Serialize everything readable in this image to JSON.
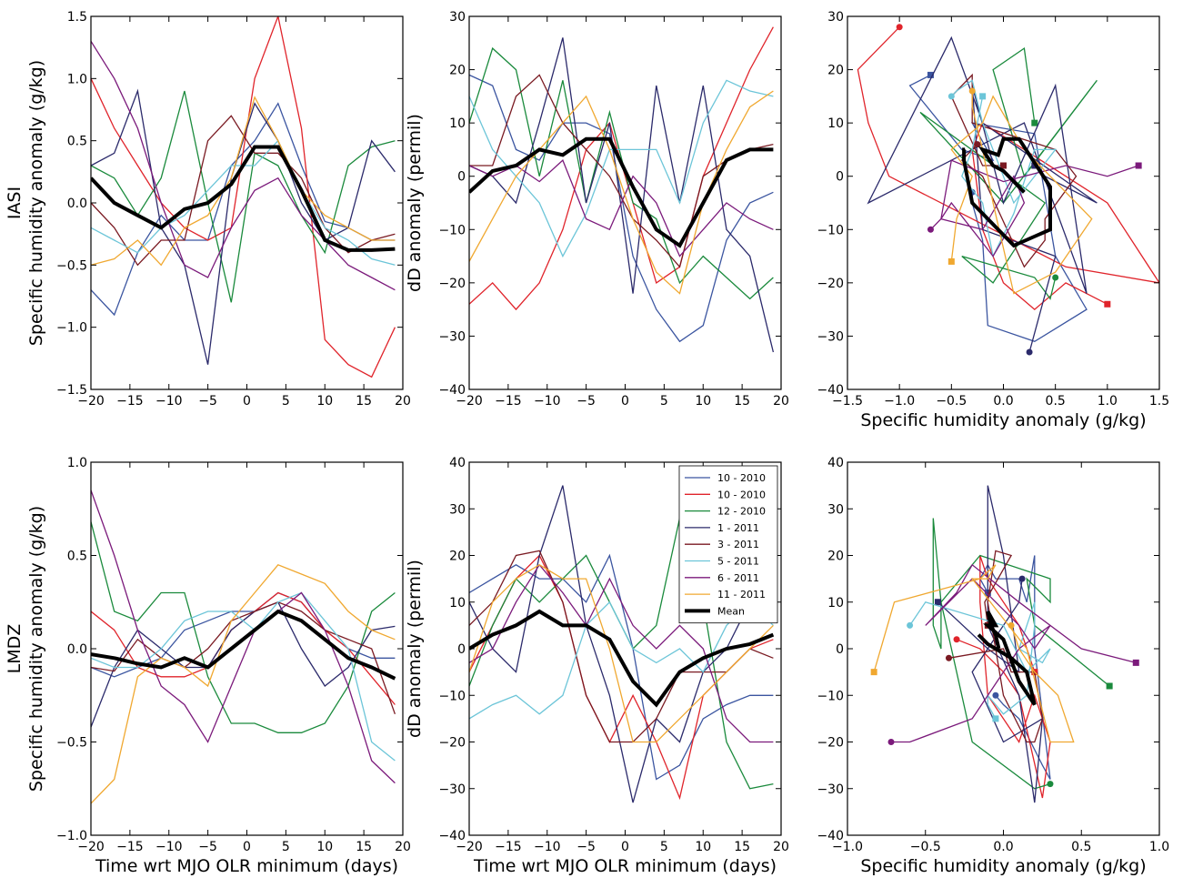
{
  "chart_data": [
    {
      "type": "line",
      "row_label": "IASI",
      "ylabel": "Specific humidity anomaly (g/kg)",
      "x": [
        -20,
        -17,
        -14,
        -11,
        -8,
        -5,
        -2,
        1,
        4,
        7,
        10,
        13,
        16,
        19
      ],
      "xlim": [
        -20,
        20
      ],
      "xticks": [
        {
          "value": -20,
          "label": "−20"
        },
        {
          "value": -15,
          "label": "−15"
        },
        {
          "value": -10,
          "label": "−10"
        },
        {
          "value": -5,
          "label": "−5"
        },
        0,
        5,
        10,
        15,
        20
      ],
      "ylim": [
        -1.5,
        1.5
      ],
      "yticks": [
        {
          "value": -1.5,
          "label": "−1.5"
        },
        {
          "value": -1,
          "label": "−1.0"
        },
        {
          "value": -0.5,
          "label": "−0.5"
        },
        {
          "value": 0,
          "label": "0.0"
        },
        0.5,
        {
          "value": 1,
          "label": "1.0"
        },
        1.5
      ],
      "series": [
        {
          "color": "#3b55a0",
          "values": [
            -0.7,
            -0.9,
            -0.4,
            -0.1,
            -0.3,
            -0.3,
            0.3,
            0.5,
            0.8,
            0.3,
            -0.15,
            -0.2,
            -0.3,
            -0.3
          ]
        },
        {
          "color": "#e0242b",
          "values": [
            1.0,
            0.6,
            0.3,
            0.0,
            -0.2,
            -0.3,
            -0.2,
            1.0,
            1.5,
            0.6,
            -1.1,
            -1.3,
            -1.4,
            -1.0
          ]
        },
        {
          "color": "#1a8a3c",
          "values": [
            0.3,
            0.2,
            -0.1,
            0.2,
            0.9,
            0.0,
            -0.8,
            0.4,
            0.3,
            -0.1,
            -0.4,
            0.3,
            0.45,
            0.5
          ]
        },
        {
          "color": "#2b2a6b",
          "values": [
            0.3,
            0.4,
            0.9,
            -0.2,
            -0.5,
            -1.3,
            0.2,
            0.8,
            0.5,
            0.0,
            -0.3,
            -0.2,
            0.5,
            0.25
          ]
        },
        {
          "color": "#7a1a22",
          "values": [
            0.0,
            -0.2,
            -0.5,
            -0.3,
            -0.3,
            0.5,
            0.7,
            0.4,
            0.4,
            0.2,
            -0.2,
            -0.4,
            -0.3,
            -0.25
          ]
        },
        {
          "color": "#6cc5d8",
          "values": [
            -0.2,
            -0.3,
            -0.4,
            -0.2,
            -0.1,
            0.1,
            0.3,
            0.3,
            0.5,
            0.1,
            -0.2,
            -0.3,
            -0.45,
            -0.5
          ]
        },
        {
          "color": "#7b1a7b",
          "values": [
            1.3,
            1.0,
            0.6,
            0.0,
            -0.5,
            -0.6,
            -0.2,
            0.1,
            0.2,
            -0.1,
            -0.3,
            -0.5,
            -0.6,
            -0.7
          ]
        },
        {
          "color": "#f0a830",
          "values": [
            -0.5,
            -0.45,
            -0.3,
            -0.5,
            -0.2,
            -0.1,
            0.2,
            0.85,
            0.5,
            0.1,
            -0.1,
            -0.2,
            -0.3,
            -0.3
          ]
        },
        {
          "color": "#000000",
          "linewidth": 4,
          "values": [
            0.2,
            0.0,
            -0.1,
            -0.2,
            -0.05,
            0.0,
            0.15,
            0.45,
            0.45,
            0.1,
            -0.3,
            -0.38,
            -0.38,
            -0.37
          ]
        }
      ]
    },
    {
      "type": "line",
      "ylabel": "dD anomaly (permil)",
      "x": [
        -20,
        -17,
        -14,
        -11,
        -8,
        -5,
        -2,
        1,
        4,
        7,
        10,
        13,
        16,
        19
      ],
      "xlim": [
        -20,
        20
      ],
      "xticks": [
        {
          "value": -20,
          "label": "−20"
        },
        {
          "value": -15,
          "label": "−15"
        },
        {
          "value": -10,
          "label": "−10"
        },
        {
          "value": -5,
          "label": "−5"
        },
        0,
        5,
        10,
        15,
        20
      ],
      "ylim": [
        -40,
        30
      ],
      "yticks": [
        {
          "value": -40,
          "label": "−40"
        },
        {
          "value": -30,
          "label": "−30"
        },
        {
          "value": -20,
          "label": "−20"
        },
        {
          "value": -10,
          "label": "−10"
        },
        0,
        10,
        20,
        30
      ],
      "series": [
        {
          "color": "#3b55a0",
          "values": [
            19,
            17,
            5,
            3,
            10,
            10,
            8,
            -15,
            -25,
            -31,
            -28,
            -12,
            -5,
            -3
          ]
        },
        {
          "color": "#e0242b",
          "values": [
            -24,
            -20,
            -25,
            -20,
            -10,
            5,
            10,
            -5,
            -20,
            -17,
            0,
            10,
            20,
            28
          ]
        },
        {
          "color": "#1a8a3c",
          "values": [
            10,
            24,
            20,
            0,
            18,
            -5,
            12,
            -5,
            -8,
            -20,
            -15,
            -19,
            -23,
            -19
          ]
        },
        {
          "color": "#2b2a6b",
          "values": [
            2,
            0,
            -5,
            10,
            26,
            -5,
            10,
            -22,
            17,
            -5,
            17,
            -10,
            -15,
            -33
          ]
        },
        {
          "color": "#7a1a22",
          "values": [
            2,
            2,
            15,
            19,
            10,
            5,
            0,
            -8,
            -12,
            -17,
            0,
            3,
            5,
            6
          ]
        },
        {
          "color": "#6cc5d8",
          "values": [
            15,
            5,
            0,
            -5,
            -15,
            -7,
            5,
            5,
            5,
            -5,
            10,
            18,
            16,
            15
          ]
        },
        {
          "color": "#7b1a7b",
          "values": [
            2,
            0,
            2,
            -1,
            3,
            -8,
            -10,
            0,
            -5,
            -15,
            -10,
            -5,
            -8,
            -10
          ]
        },
        {
          "color": "#f0a830",
          "values": [
            -16,
            -8,
            0,
            5,
            10,
            15,
            5,
            -8,
            -18,
            -22,
            -5,
            5,
            13,
            16
          ]
        },
        {
          "color": "#000000",
          "linewidth": 4,
          "values": [
            -3,
            1,
            2,
            5,
            4,
            7,
            7,
            -2,
            -10,
            -13,
            -5,
            3,
            5,
            5
          ]
        }
      ]
    },
    {
      "type": "scatter",
      "xlabel": "Specific humidity anomaly (g/kg)",
      "xlim": [
        -1.5,
        1.5
      ],
      "xticks": [
        {
          "value": -1.5,
          "label": "−1.5"
        },
        {
          "value": -1,
          "label": "−1.0"
        },
        {
          "value": -0.5,
          "label": "−0.5"
        },
        {
          "value": 0,
          "label": "0.0"
        },
        0.5,
        {
          "value": 1,
          "label": "1.0"
        },
        1.5
      ],
      "ylim": [
        -40,
        30
      ],
      "yticks": [
        {
          "value": -40,
          "label": "−40"
        },
        {
          "value": -30,
          "label": "−30"
        },
        {
          "value": -20,
          "label": "−20"
        },
        {
          "value": -10,
          "label": "−10"
        },
        0,
        10,
        20,
        30
      ]
    },
    {
      "type": "line",
      "row_label": "LMDZ",
      "ylabel": "Specific humidity anomaly (g/kg)",
      "xlabel": "Time wrt MJO OLR minimum (days)",
      "x": [
        -20,
        -17,
        -14,
        -11,
        -8,
        -5,
        -2,
        1,
        4,
        7,
        10,
        13,
        16,
        19
      ],
      "xlim": [
        -20,
        20
      ],
      "xticks": [
        {
          "value": -20,
          "label": "−20"
        },
        {
          "value": -15,
          "label": "−15"
        },
        {
          "value": -10,
          "label": "−10"
        },
        {
          "value": -5,
          "label": "−5"
        },
        0,
        5,
        10,
        15,
        20
      ],
      "ylim": [
        -1,
        1
      ],
      "yticks": [
        {
          "value": -1,
          "label": "−1.0"
        },
        {
          "value": -0.5,
          "label": "−0.5"
        },
        {
          "value": 0,
          "label": "0.0"
        },
        0.5,
        {
          "value": 1,
          "label": "1.0"
        }
      ],
      "series": [
        {
          "color": "#3b55a0",
          "values": [
            -0.1,
            -0.15,
            -0.1,
            -0.05,
            0.1,
            0.15,
            0.2,
            0.2,
            0.3,
            0.25,
            0.1,
            0.0,
            -0.05,
            -0.05
          ]
        },
        {
          "color": "#e0242b",
          "values": [
            0.2,
            0.1,
            -0.1,
            -0.15,
            -0.15,
            -0.1,
            0.1,
            0.2,
            0.3,
            0.25,
            0.1,
            0.0,
            -0.15,
            -0.3
          ]
        },
        {
          "color": "#1a8a3c",
          "values": [
            0.68,
            0.2,
            0.15,
            0.3,
            0.3,
            -0.15,
            -0.4,
            -0.4,
            -0.45,
            -0.45,
            -0.4,
            -0.2,
            0.2,
            0.3
          ]
        },
        {
          "color": "#2b2a6b",
          "values": [
            -0.42,
            -0.1,
            0.1,
            0.0,
            -0.1,
            -0.1,
            0.1,
            0.2,
            0.25,
            0.0,
            -0.2,
            -0.1,
            0.1,
            0.12
          ]
        },
        {
          "color": "#7a1a22",
          "values": [
            -0.1,
            -0.12,
            0.05,
            -0.05,
            -0.1,
            0.0,
            0.15,
            0.2,
            0.25,
            0.2,
            0.1,
            0.05,
            0.0,
            -0.35
          ]
        },
        {
          "color": "#6cc5d8",
          "values": [
            -0.05,
            -0.1,
            -0.1,
            0.0,
            0.15,
            0.2,
            0.2,
            0.1,
            0.25,
            0.3,
            0.15,
            0.0,
            -0.5,
            -0.6
          ]
        },
        {
          "color": "#7b1a7b",
          "values": [
            0.85,
            0.5,
            0.1,
            -0.2,
            -0.3,
            -0.5,
            -0.2,
            0.1,
            0.2,
            0.3,
            0.1,
            -0.2,
            -0.6,
            -0.72
          ]
        },
        {
          "color": "#f0a830",
          "values": [
            -0.83,
            -0.7,
            -0.15,
            -0.05,
            -0.1,
            -0.2,
            0.15,
            0.3,
            0.45,
            0.4,
            0.35,
            0.2,
            0.1,
            0.05
          ]
        },
        {
          "color": "#000000",
          "linewidth": 4,
          "values": [
            -0.03,
            -0.05,
            -0.08,
            -0.1,
            -0.05,
            -0.1,
            0.0,
            0.1,
            0.2,
            0.15,
            0.05,
            -0.05,
            -0.1,
            -0.16
          ]
        }
      ]
    },
    {
      "type": "line",
      "ylabel": "dD anomaly (permil)",
      "xlabel": "Time wrt MJO OLR minimum (days)",
      "legend": "upper right",
      "x": [
        -20,
        -17,
        -14,
        -11,
        -8,
        -5,
        -2,
        1,
        4,
        7,
        10,
        13,
        16,
        19
      ],
      "xlim": [
        -20,
        20
      ],
      "xticks": [
        {
          "value": -20,
          "label": "−20"
        },
        {
          "value": -15,
          "label": "−15"
        },
        {
          "value": -10,
          "label": "−10"
        },
        {
          "value": -5,
          "label": "−5"
        },
        0,
        5,
        10,
        15,
        20
      ],
      "ylim": [
        -40,
        40
      ],
      "yticks": [
        {
          "value": -40,
          "label": "−40"
        },
        {
          "value": -30,
          "label": "−30"
        },
        {
          "value": -20,
          "label": "−20"
        },
        {
          "value": -10,
          "label": "−10"
        },
        0,
        10,
        20,
        30,
        40
      ],
      "series": [
        {
          "name": "10 - 2010",
          "color": "#3b55a0",
          "values": [
            12,
            15,
            18,
            15,
            15,
            10,
            20,
            0,
            -28,
            -25,
            -15,
            -12,
            -10,
            -10
          ]
        },
        {
          "name": "10 - 2010",
          "color": "#e0242b",
          "values": [
            -5,
            5,
            15,
            20,
            10,
            -10,
            -20,
            -10,
            -20,
            -32,
            -10,
            -5,
            0,
            2
          ]
        },
        {
          "name": "12 - 2010",
          "color": "#1a8a3c",
          "values": [
            -8,
            5,
            15,
            10,
            15,
            20,
            10,
            0,
            5,
            28,
            10,
            -20,
            -30,
            -29
          ]
        },
        {
          "name": "1 - 2011",
          "color": "#2b2a6b",
          "values": [
            10,
            0,
            -5,
            20,
            35,
            5,
            -10,
            -33,
            -15,
            -20,
            -5,
            0,
            10,
            15
          ]
        },
        {
          "name": "3 - 2011",
          "color": "#7a1a22",
          "values": [
            5,
            10,
            20,
            21,
            10,
            -10,
            -20,
            -20,
            -15,
            -5,
            -5,
            -5,
            0,
            -2
          ]
        },
        {
          "name": "5 - 2011",
          "color": "#6cc5d8",
          "values": [
            -15,
            -12,
            -10,
            -14,
            -10,
            5,
            10,
            0,
            -3,
            0,
            -5,
            5,
            10,
            5
          ]
        },
        {
          "name": "6 - 2011",
          "color": "#7b1a7b",
          "values": [
            -3,
            0,
            10,
            18,
            12,
            5,
            15,
            5,
            0,
            5,
            0,
            -15,
            -20,
            -20
          ]
        },
        {
          "name": "11 - 2011",
          "color": "#f0a830",
          "values": [
            -5,
            10,
            15,
            18,
            15,
            15,
            0,
            -20,
            -20,
            -15,
            -10,
            -5,
            0,
            5
          ]
        },
        {
          "name": "Mean",
          "color": "#000000",
          "linewidth": 4,
          "values": [
            0,
            3,
            5,
            8,
            5,
            5,
            2,
            -7,
            -12,
            -5,
            -2,
            0,
            1,
            3
          ]
        }
      ]
    },
    {
      "type": "scatter",
      "xlabel": "Specific humidity anomaly (g/kg)",
      "xlim": [
        -1,
        1
      ],
      "xticks": [
        {
          "value": -1,
          "label": "−1.0"
        },
        {
          "value": -0.5,
          "label": "−0.5"
        },
        {
          "value": 0,
          "label": "0.0"
        },
        0.5,
        {
          "value": 1,
          "label": "1.0"
        }
      ],
      "ylim": [
        -40,
        40
      ],
      "yticks": [
        {
          "value": -40,
          "label": "−40"
        },
        {
          "value": -30,
          "label": "−30"
        },
        {
          "value": -20,
          "label": "−20"
        },
        {
          "value": -10,
          "label": "−10"
        },
        0,
        10,
        20,
        30,
        40
      ]
    }
  ]
}
